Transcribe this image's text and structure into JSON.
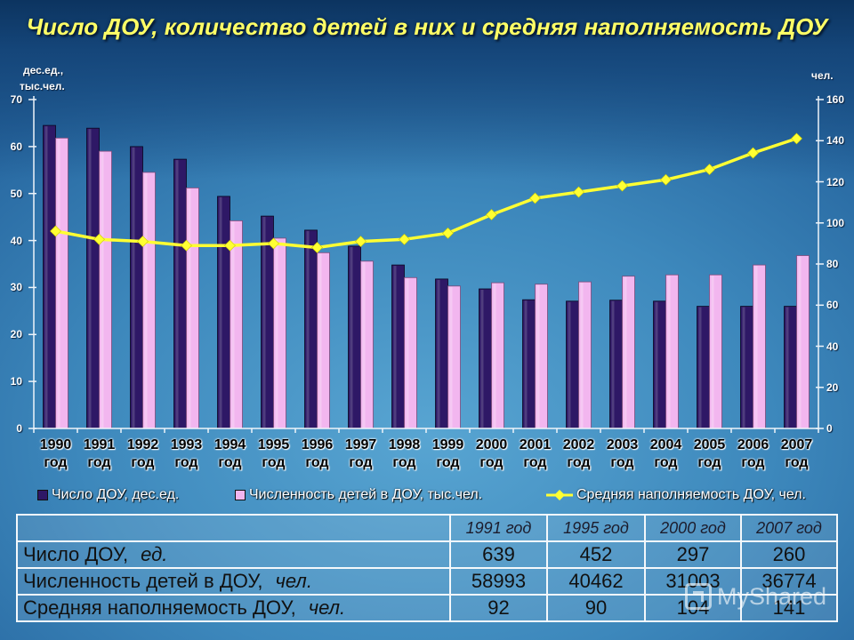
{
  "slide": {
    "title": "Число ДОУ, количество детей в них и средняя наполняемость ДОУ"
  },
  "chart_data": {
    "type": "bar",
    "categories": [
      "1990 год",
      "1991 год",
      "1992 год",
      "1993 год",
      "1994 год",
      "1995 год",
      "1996 год",
      "1997 год",
      "1998 год",
      "1999 год",
      "2000 год",
      "2001 год",
      "2002 год",
      "2003 год",
      "2004 год",
      "2005 год",
      "2006 год",
      "2007 год"
    ],
    "series": [
      {
        "name": "Число ДОУ, дес.ед.",
        "type": "bar",
        "axis": "left",
        "color": "#2e1866",
        "values": [
          64.5,
          63.9,
          60.0,
          57.3,
          49.4,
          45.2,
          42.2,
          38.8,
          34.8,
          31.8,
          29.7,
          27.4,
          27.1,
          27.3,
          27.1,
          26.0,
          26.0,
          26.0
        ]
      },
      {
        "name": "Численность детей в ДОУ, тыс.чел.",
        "type": "bar",
        "axis": "left",
        "color": "#f2b6ef",
        "values": [
          61.8,
          59.0,
          54.5,
          51.2,
          44.2,
          40.5,
          37.4,
          35.6,
          32.1,
          30.3,
          31.0,
          30.7,
          31.2,
          32.4,
          32.7,
          32.7,
          34.8,
          36.8
        ]
      },
      {
        "name": "Средняя наполняемость ДОУ, чел.",
        "type": "line",
        "axis": "right",
        "color": "#ffff33",
        "marker": "diamond",
        "values": [
          96,
          92,
          91,
          89,
          89,
          90,
          88,
          91,
          92,
          95,
          104,
          112,
          115,
          118,
          121,
          126,
          134,
          141
        ]
      }
    ],
    "ylabel_left": [
      "дес.ед.,",
      "тыс.чел."
    ],
    "ylabel_right": "чел.",
    "ylim_left": [
      0,
      70
    ],
    "ylim_right": [
      0,
      160
    ],
    "yticks_left": [
      0,
      10,
      20,
      30,
      40,
      50,
      60,
      70
    ],
    "yticks_right": [
      0,
      20,
      40,
      60,
      80,
      100,
      120,
      140,
      160
    ],
    "grid": false,
    "legend": "bottom"
  },
  "table": {
    "columns": [
      "1991 год",
      "1995 год",
      "2000 год",
      "2007 год"
    ],
    "rows": [
      {
        "label": "Число ДОУ,",
        "unit": "ед.",
        "values": [
          "639",
          "452",
          "297",
          "260"
        ]
      },
      {
        "label": "Численность детей в ДОУ,",
        "unit": "чел.",
        "values": [
          "58993",
          "40462",
          "31003",
          "36774"
        ]
      },
      {
        "label": "Средняя наполняемость ДОУ,",
        "unit": "чел.",
        "values": [
          "92",
          "90",
          "104",
          "141"
        ]
      }
    ]
  },
  "watermark": {
    "text": "MyShared"
  }
}
